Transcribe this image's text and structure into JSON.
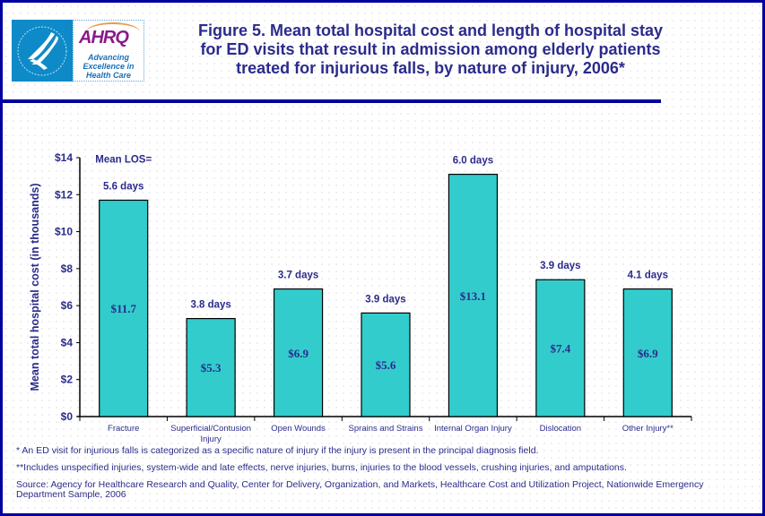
{
  "logo": {
    "seal_label": "HHS seal",
    "brand": "AHRQ",
    "tagline": [
      "Advancing",
      "Excellence in",
      "Health Care"
    ]
  },
  "header": {
    "title_lines": [
      "Figure 5. Mean total hospital cost and length of hospital stay",
      "for ED visits that result in admission among elderly patients",
      "treated for injurious falls, by nature of injury, 2006*"
    ]
  },
  "colors": {
    "bar_fill": "#33cccc",
    "text": "#2b2b8c",
    "frame": "#0000a0"
  },
  "chart_data": {
    "type": "bar",
    "title": "Figure 5. Mean total hospital cost and length of hospital stay for ED visits that result in admission among elderly patients treated for injurious falls, by nature of injury, 2006*",
    "xlabel": "",
    "ylabel": "Mean total hospital cost (in thousands)",
    "ylim": [
      0,
      14
    ],
    "yticks": [
      0,
      2,
      4,
      6,
      8,
      10,
      12,
      14
    ],
    "ytick_labels": [
      "$0",
      "$2",
      "$4",
      "$6",
      "$8",
      "$10",
      "$12",
      "$14"
    ],
    "grid": false,
    "categories": [
      [
        "Fracture"
      ],
      [
        "Superficial/Contusion",
        "Injury"
      ],
      [
        "Open Wounds"
      ],
      [
        "Sprains and Strains"
      ],
      [
        "Internal Organ Injury"
      ],
      [
        "Dislocation"
      ],
      [
        "Other Injury**"
      ]
    ],
    "values": [
      11.7,
      5.3,
      6.9,
      5.6,
      13.1,
      7.4,
      6.9
    ],
    "value_labels": [
      "$11.7",
      "$5.3",
      "$6.9",
      "$5.6",
      "$13.1",
      "$7.4",
      "$6.9"
    ],
    "annotations": {
      "mean_los_prefix": "Mean LOS=",
      "los_labels": [
        "5.6 days",
        "3.8 days",
        "3.7 days",
        "3.9 days",
        "6.0 days",
        "3.9 days",
        "4.1 days"
      ]
    }
  },
  "footnotes": {
    "note1": "* An ED visit for injurious falls is categorized as a specific nature of injury if the injury is present in the principal diagnosis field.",
    "note2": "**Includes unspecified injuries, system-wide and late effects, nerve injuries, burns, injuries to the blood vessels, crushing injuries, and amputations.",
    "source_line1": "Source: Agency for Healthcare Research and Quality, Center for Delivery, Organization, and Markets, Healthcare Cost and Utilization Project, Nationwide Emergency",
    "source_line2": "Department Sample, 2006"
  }
}
